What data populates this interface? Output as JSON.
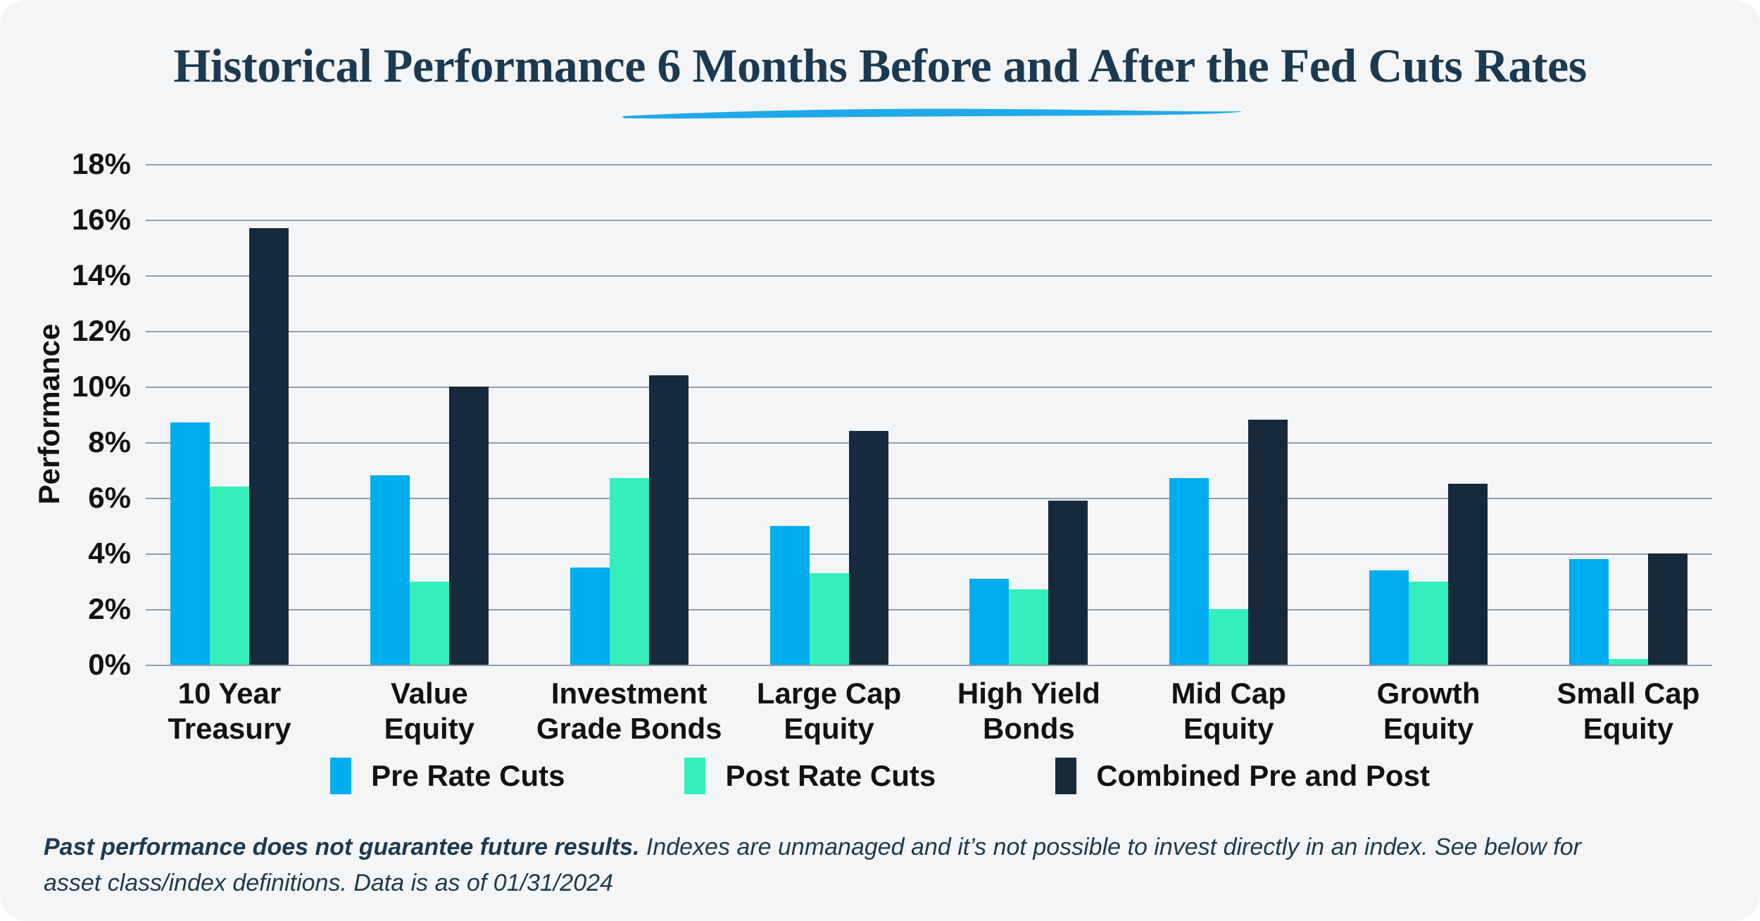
{
  "colors": {
    "background": "#F4F5F6",
    "title": "#1B3A52",
    "underline": "#1FA9E8",
    "gridline": "#5D6F80",
    "axis_text": "#101213",
    "footnote_text": "#1C3A50",
    "pre_rate_cuts": "#00ADEE",
    "post_rate_cuts": "#33EFBE",
    "combined_pre_and_post": "#17293C"
  },
  "chart_data": {
    "type": "bar",
    "title": "Historical Performance 6 Months Before and After the Fed Cuts Rates",
    "xlabel": "",
    "ylabel": "Performance",
    "ylim": [
      0,
      18
    ],
    "grid": true,
    "legend_position": "bottom",
    "yticks": [
      "0%",
      "2%",
      "4%",
      "6%",
      "8%",
      "10%",
      "12%",
      "14%",
      "16%",
      "18%"
    ],
    "categories": [
      "10 Year\nTreasury",
      "Value\nEquity",
      "Investment\nGrade Bonds",
      "Large Cap\nEquity",
      "High Yield\nBonds",
      "Mid Cap\nEquity",
      "Growth\nEquity",
      "Small Cap\nEquity"
    ],
    "series": [
      {
        "name": "Pre Rate Cuts",
        "color": "#00ADEE",
        "values": [
          8.7,
          6.8,
          3.5,
          5.0,
          3.1,
          6.7,
          3.4,
          3.8
        ]
      },
      {
        "name": "Post Rate Cuts",
        "color": "#33EFBE",
        "values": [
          6.4,
          3.0,
          6.7,
          3.3,
          2.7,
          2.0,
          3.0,
          0.2
        ]
      },
      {
        "name": "Combined Pre and Post",
        "color": "#17293C",
        "values": [
          15.7,
          10.0,
          10.4,
          8.4,
          5.9,
          8.8,
          6.5,
          4.0
        ]
      }
    ]
  },
  "footnote": {
    "bold": "Past performance does not guarantee future results.",
    "rest": " Indexes are unmanaged and it’s not possible to invest directly in an index. See below for\nasset class/index definitions. Data is as of 01/31/2024"
  }
}
